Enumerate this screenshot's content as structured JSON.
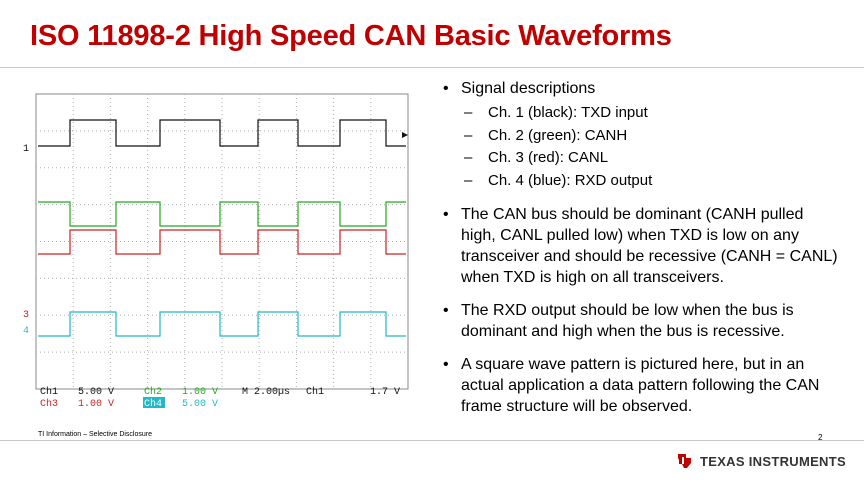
{
  "slide": {
    "title": "ISO 11898-2 High Speed CAN Basic Waveforms",
    "footer_left": "TI Information – Selective Disclosure",
    "page_number": "2",
    "logo_text": "TEXAS INSTRUMENTS",
    "title_color": "#c00000"
  },
  "notes": {
    "signal_heading": "Signal descriptions",
    "signals": [
      "Ch. 1 (black): TXD input",
      "Ch. 2 (green): CANH",
      "Ch. 3 (red): CANL",
      "Ch. 4 (blue): RXD output"
    ],
    "bullets": [
      "The CAN bus should be dominant (CANH pulled high, CANL pulled low) when TXD is low on any transceiver and should be recessive (CANH = CANL) when TXD is high on all transceivers.",
      "The RXD output should be low when the bus is dominant and high when the bus is recessive.",
      "A square wave pattern is pictured here, but in an actual application a data pattern following the CAN frame structure will be observed."
    ]
  },
  "scope": {
    "marker_1": "1",
    "marker_3": "3",
    "marker_4": "4",
    "ch1_label": "Ch1",
    "ch1_scale": "5.00 V",
    "ch2_label": "Ch2",
    "ch2_scale": "1.00 V",
    "ch3_label": "Ch3",
    "ch3_scale": "1.00 V",
    "ch4_label": "Ch4",
    "ch4_scale": "5.00 V",
    "timebase": "M 2.00µs",
    "trigger_src": "Ch1",
    "trigger_level": "1.7 V",
    "colors": {
      "ch1": "#111111",
      "ch2": "#22aa22",
      "ch3": "#cc2222",
      "ch4": "#22b8c8",
      "grid": "#b0b0b0"
    }
  }
}
